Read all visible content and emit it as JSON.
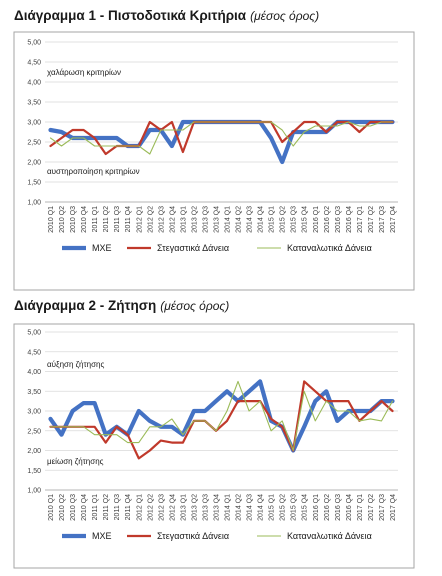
{
  "chart_data": [
    {
      "type": "line",
      "title": "Διάγραμμα 1 - Πιστοδοτικά Κριτήρια",
      "subtitle": "(μέσος όρος)",
      "ylim": [
        1.0,
        5.0
      ],
      "yticks": [
        "1,00",
        "1,50",
        "2,00",
        "2,50",
        "3,00",
        "3,50",
        "4,00",
        "4,50",
        "5,00"
      ],
      "categories": [
        "2010 Q1",
        "2010 Q2",
        "2010 Q3",
        "2010 Q4",
        "2011 Q1",
        "2011 Q2",
        "2011 Q3",
        "2011 Q4",
        "2012 Q1",
        "2012 Q2",
        "2012 Q3",
        "2012 Q4",
        "2013 Q1",
        "2013 Q2",
        "2013 Q3",
        "2013 Q4",
        "2014 Q1",
        "2014 Q2",
        "2014 Q3",
        "2014 Q4",
        "2015 Q1",
        "2015 Q2",
        "2015 Q3",
        "2015 Q4",
        "2016 Q1",
        "2016 Q2",
        "2016 Q3",
        "2016 Q4",
        "2017 Q1",
        "2017 Q2",
        "2017 Q3",
        "2017 Q4"
      ],
      "annotations": [
        "χαλάρωση κριτηρίων",
        "αυστηροποίηση κριτηρίων"
      ],
      "legend_position": "bottom",
      "grid": true,
      "series": [
        {
          "name": "ΜΧΕ",
          "color": "#4472c4",
          "values": [
            2.8,
            2.75,
            2.6,
            2.6,
            2.6,
            2.6,
            2.6,
            2.4,
            2.4,
            2.8,
            2.8,
            2.4,
            3.0,
            3.0,
            3.0,
            3.0,
            3.0,
            3.0,
            3.0,
            3.0,
            2.6,
            2.0,
            2.75,
            2.75,
            2.75,
            2.75,
            3.0,
            3.0,
            3.0,
            3.0,
            3.0,
            3.0
          ]
        },
        {
          "name": "Στεγαστικά Δάνεια",
          "color": "#c0392b",
          "values": [
            2.4,
            2.6,
            2.8,
            2.8,
            2.6,
            2.2,
            2.4,
            2.4,
            2.4,
            3.0,
            2.8,
            3.0,
            2.25,
            3.0,
            3.0,
            3.0,
            3.0,
            3.0,
            3.0,
            3.0,
            3.0,
            2.5,
            2.75,
            3.0,
            3.0,
            2.75,
            3.0,
            3.0,
            2.75,
            3.0,
            3.0,
            3.0
          ]
        },
        {
          "name": "Καταναλωτικά Δάνεια",
          "color": "#9bbb59",
          "values": [
            2.6,
            2.4,
            2.6,
            2.6,
            2.4,
            2.4,
            2.4,
            2.4,
            2.4,
            2.2,
            2.8,
            2.8,
            2.8,
            3.0,
            3.0,
            3.0,
            3.0,
            3.0,
            3.0,
            3.0,
            3.0,
            2.8,
            2.4,
            2.75,
            2.9,
            2.9,
            2.9,
            3.0,
            2.9,
            2.9,
            3.0,
            3.0
          ]
        }
      ]
    },
    {
      "type": "line",
      "title": "Διάγραμμα 2 - Ζήτηση",
      "subtitle": "(μέσος όρος)",
      "ylim": [
        1.0,
        5.0
      ],
      "yticks": [
        "1,00",
        "1,50",
        "2,00",
        "2,50",
        "3,00",
        "3,50",
        "4,00",
        "4,50",
        "5,00"
      ],
      "categories": [
        "2010 Q1",
        "2010 Q2",
        "2010 Q3",
        "2010 Q4",
        "2011 Q1",
        "2011 Q2",
        "2011 Q3",
        "2011 Q4",
        "2012 Q1",
        "2012 Q2",
        "2012 Q3",
        "2012 Q4",
        "2013 Q1",
        "2013 Q2",
        "2013 Q3",
        "2013 Q4",
        "2014 Q1",
        "2014 Q2",
        "2014 Q3",
        "2014 Q4",
        "2015 Q1",
        "2015 Q2",
        "2015 Q3",
        "2015 Q4",
        "2016 Q1",
        "2016 Q2",
        "2016 Q3",
        "2016 Q4",
        "2017 Q1",
        "2017 Q2",
        "2017 Q3",
        "2017 Q4"
      ],
      "annotations": [
        "αύξηση ζήτησης",
        "μείωση ζήτησης"
      ],
      "legend_position": "bottom",
      "grid": true,
      "series": [
        {
          "name": "ΜΧΕ",
          "color": "#4472c4",
          "values": [
            2.8,
            2.4,
            3.0,
            3.2,
            3.2,
            2.4,
            2.6,
            2.4,
            3.0,
            2.75,
            2.6,
            2.6,
            2.4,
            3.0,
            3.0,
            3.25,
            3.5,
            3.25,
            3.5,
            3.75,
            2.75,
            2.6,
            2.0,
            2.6,
            3.25,
            3.5,
            2.75,
            3.0,
            3.0,
            3.0,
            3.25,
            3.25
          ]
        },
        {
          "name": "Στεγαστικά Δάνεια",
          "color": "#c0392b",
          "values": [
            2.6,
            2.6,
            2.6,
            2.6,
            2.6,
            2.2,
            2.6,
            2.4,
            1.8,
            2.0,
            2.25,
            2.2,
            2.2,
            2.75,
            2.75,
            2.5,
            2.75,
            3.25,
            3.25,
            3.25,
            2.8,
            2.6,
            2.0,
            3.75,
            3.5,
            3.25,
            3.25,
            3.25,
            2.75,
            3.0,
            3.25,
            3.0
          ]
        },
        {
          "name": "Καταναλωτικά Δάνεια",
          "color": "#9bbb59",
          "values": [
            2.6,
            2.6,
            2.6,
            2.6,
            2.4,
            2.4,
            2.4,
            2.2,
            2.2,
            2.6,
            2.6,
            2.8,
            2.4,
            2.75,
            2.75,
            2.5,
            3.0,
            3.75,
            3.0,
            3.25,
            2.5,
            2.75,
            2.0,
            3.5,
            2.75,
            3.25,
            3.0,
            3.0,
            2.75,
            2.8,
            2.75,
            3.25
          ]
        }
      ]
    }
  ]
}
